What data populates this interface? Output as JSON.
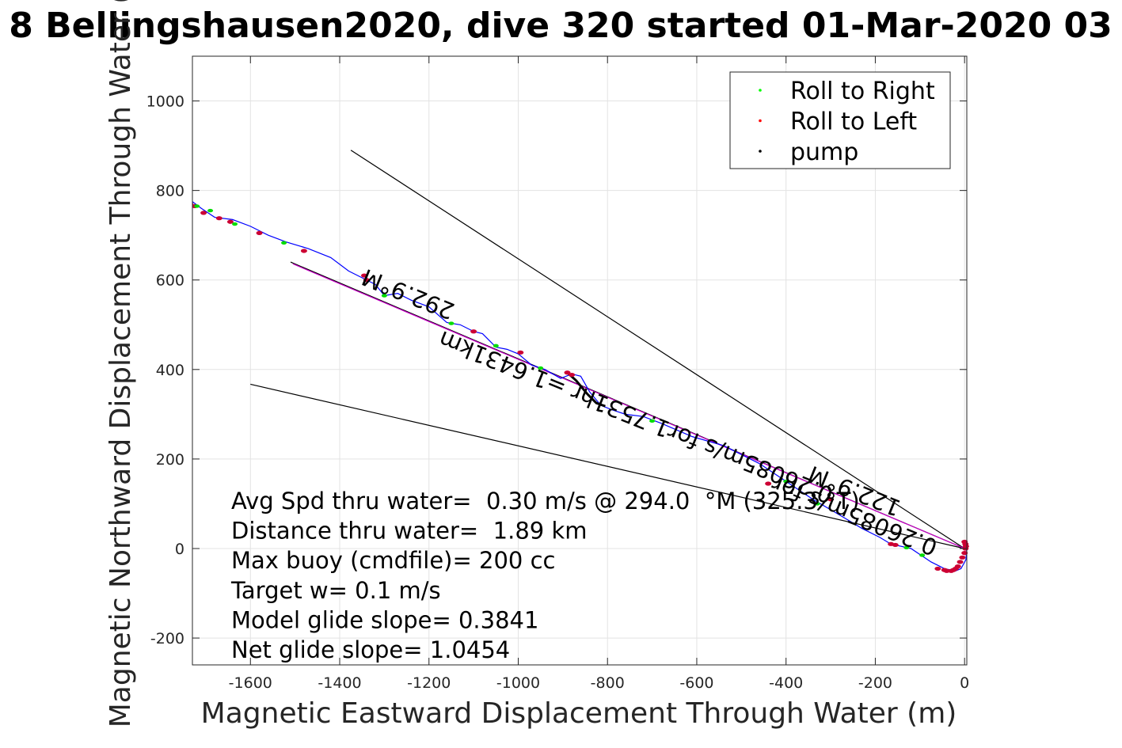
{
  "chart_data": {
    "type": "scatter",
    "title": "8 Bellingshausen2020, dive 320 started 01-Mar-2020 03",
    "xlabel": "Magnetic Eastward Displacement Through Water (m)",
    "ylabel": "Magnetic Northward Displacement Through Water (",
    "xlim": [
      -1730,
      5
    ],
    "ylim": [
      -260,
      1100
    ],
    "xticks": [
      -1600,
      -1400,
      -1200,
      -1000,
      -800,
      -600,
      -400,
      -200,
      0
    ],
    "yticks": [
      -200,
      0,
      200,
      400,
      600,
      800,
      1000
    ],
    "xtick_labels": [
      "-1600",
      "-1400",
      "-1200",
      "-1000",
      "-800",
      "-600",
      "-400",
      "-200",
      "0"
    ],
    "ytick_labels": [
      "-200",
      "0",
      "200",
      "400",
      "600",
      "800",
      "1000"
    ],
    "grid": true,
    "legend": {
      "placement": "top-right",
      "entries": [
        {
          "label": "Roll to Right",
          "color": "#00ff00"
        },
        {
          "label": "Roll to Left",
          "color": "#ff0000"
        },
        {
          "label": "pump",
          "color": "#000000"
        }
      ]
    },
    "track": {
      "color": "#0000ff",
      "x": [
        5,
        3,
        -8,
        -20,
        -45,
        -75,
        -120,
        -165,
        -190,
        -230,
        -280,
        -340,
        -400,
        -460,
        -540,
        -610,
        -680,
        -720,
        -760,
        -790,
        -815,
        -840,
        -860,
        -880,
        -905,
        -940,
        -970,
        -1000,
        -1025,
        -1050,
        -1080,
        -1100,
        -1130,
        -1160,
        -1200,
        -1240,
        -1270,
        -1300,
        -1320,
        -1350,
        -1380,
        -1420,
        -1470,
        -1520,
        -1560,
        -1600,
        -1640,
        -1680,
        -1710,
        -1730
      ],
      "y": [
        0,
        -25,
        -45,
        -50,
        -45,
        -30,
        0,
        10,
        25,
        45,
        75,
        110,
        150,
        190,
        230,
        250,
        280,
        295,
        300,
        310,
        320,
        350,
        385,
        390,
        380,
        400,
        410,
        435,
        445,
        450,
        480,
        485,
        500,
        505,
        540,
        555,
        570,
        565,
        590,
        605,
        620,
        650,
        670,
        685,
        700,
        720,
        735,
        740,
        760,
        775
      ]
    },
    "pump": {
      "x": [
        -890,
        -870,
        -845,
        -825,
        -805
      ],
      "y": [
        393,
        375,
        345,
        325,
        318
      ]
    },
    "roll_right": {
      "x": [
        -1720,
        -1690,
        -1635,
        -1525,
        -1300,
        -1150,
        -1050,
        -950,
        -700,
        -400,
        -330,
        -130,
        -95
      ],
      "y": [
        765,
        755,
        725,
        683,
        565,
        503,
        453,
        403,
        285,
        150,
        100,
        2,
        -15
      ]
    },
    "roll_left": {
      "x": [
        -1735,
        -1725,
        -1705,
        -1670,
        -1645,
        -1580,
        -1480,
        -1345,
        -1340,
        -1100,
        -995,
        -890,
        -880,
        -440,
        -300,
        -165,
        -155,
        -60,
        -45,
        -40,
        -30,
        -25,
        -20,
        -15,
        -10,
        -5,
        0,
        2,
        3,
        2,
        0
      ],
      "y": [
        770,
        765,
        750,
        738,
        730,
        705,
        665,
        610,
        600,
        485,
        438,
        393,
        388,
        145,
        110,
        10,
        8,
        -45,
        -48,
        -50,
        -50,
        -48,
        -45,
        -40,
        -30,
        -20,
        -10,
        0,
        5,
        10,
        15
      ]
    },
    "lines": [
      {
        "name": "",
        "color": "#000000",
        "x": [
          -1375,
          0
        ],
        "y": [
          890,
          0
        ]
      },
      {
        "name": "",
        "color": "#000000",
        "x": [
          -1600,
          0
        ],
        "y": [
          367,
          0
        ]
      },
      {
        "name": "",
        "color": "#000000",
        "x": [
          -1510,
          0
        ],
        "y": [
          640,
          0
        ]
      },
      {
        "name": "",
        "color": "#cc00cc",
        "x": [
          -1505,
          0
        ],
        "y": [
          636,
          0
        ]
      }
    ],
    "rotated_labels": [
      {
        "text": "292.9°M",
        "x": -1240,
        "y": 585,
        "angle": 202
      },
      {
        "text": "0.26085m/s for1.7531hr =1.6431km",
        "x": -730,
        "y": 310,
        "angle": 202
      },
      {
        "text": "122.9°M",
        "x": -240,
        "y": 145,
        "angle": 202
      },
      {
        "text": "0.26085m/s for",
        "x": -240,
        "y": 90,
        "angle": 202
      }
    ],
    "annotations": [
      "Avg Spd thru water=  0.30 m/s @ 294.0  °M (325.3 °T)",
      "Distance thru water=  1.89 km",
      "Max buoy (cmdfile)= 200 cc",
      "Target w= 0.1 m/s",
      "Model glide slope= 0.3841",
      "Net glide slope= 1.0454"
    ]
  }
}
